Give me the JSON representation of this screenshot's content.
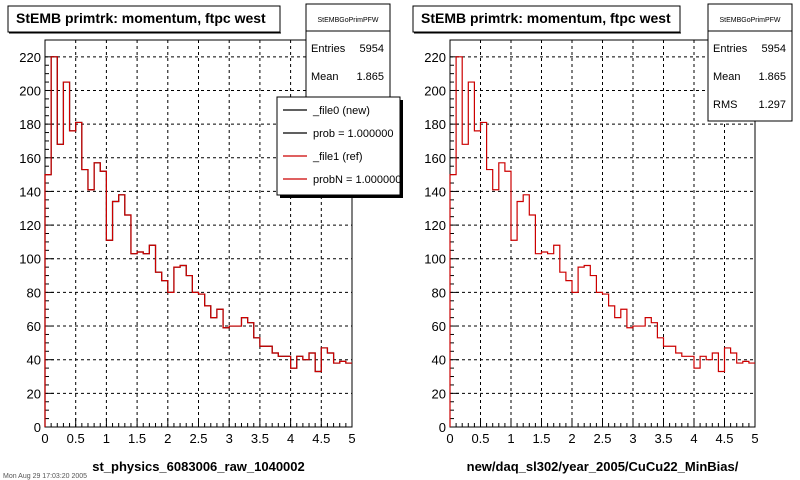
{
  "chart_data": [
    {
      "type": "histogram",
      "title": "StEMB primtrk: momentum, ftpc west",
      "xlabel": "st_physics_6083006_raw_1040002",
      "ylabel": "",
      "xlim": [
        0,
        5
      ],
      "ylim": [
        0,
        230
      ],
      "bin_width": 0.1,
      "grid": true,
      "stats": {
        "name": "StEMBGoPrimPFW",
        "rows": [
          {
            "label": "Entries",
            "value": "5954"
          },
          {
            "label": "Mean",
            "value": "1.865"
          }
        ]
      },
      "legend": {
        "placement": "top-right",
        "entries": [
          {
            "label": "_file0 (new)",
            "color": "#000000"
          },
          {
            "label": "prob = 1.000000",
            "color": "#000000"
          },
          {
            "label": "_file1 (ref)",
            "color": "#cc0000"
          },
          {
            "label": "probN = 1.000000",
            "color": "#cc0000"
          }
        ]
      },
      "series": [
        {
          "name": "_file0 (new)",
          "color": "#000000",
          "values": [
            150,
            220,
            168,
            205,
            176,
            181,
            153,
            141,
            157,
            152,
            111,
            134,
            138,
            126,
            103,
            104,
            103,
            108,
            92,
            87,
            80,
            95,
            96,
            90,
            80,
            79,
            72,
            65,
            70,
            59,
            60,
            60,
            65,
            62,
            53,
            48,
            48,
            44,
            42,
            42,
            35,
            42,
            40,
            44,
            33,
            47,
            44,
            38,
            39,
            38
          ]
        },
        {
          "name": "_file1 (ref)",
          "color": "#cc0000",
          "values": [
            150,
            220,
            168,
            205,
            176,
            181,
            153,
            141,
            157,
            152,
            111,
            134,
            138,
            126,
            103,
            104,
            103,
            108,
            92,
            87,
            80,
            95,
            96,
            90,
            80,
            79,
            72,
            65,
            70,
            59,
            60,
            60,
            65,
            62,
            53,
            48,
            48,
            44,
            42,
            42,
            35,
            42,
            40,
            44,
            33,
            47,
            44,
            38,
            39,
            38
          ]
        }
      ]
    },
    {
      "type": "histogram",
      "title": "StEMB primtrk: momentum, ftpc west",
      "xlabel": "new/daq_sl302/year_2005/CuCu22_MinBias/",
      "ylabel": "",
      "xlim": [
        0,
        5
      ],
      "ylim": [
        0,
        230
      ],
      "bin_width": 0.1,
      "grid": true,
      "stats": {
        "name": "StEMBGoPrimPFW",
        "rows": [
          {
            "label": "Entries",
            "value": "5954"
          },
          {
            "label": "Mean",
            "value": "1.865"
          },
          {
            "label": "RMS",
            "value": "1.297"
          }
        ]
      },
      "legend": null,
      "series": [
        {
          "name": "",
          "color": "#cc0000",
          "values": [
            150,
            220,
            168,
            205,
            176,
            181,
            153,
            141,
            157,
            152,
            111,
            134,
            138,
            126,
            103,
            104,
            103,
            108,
            92,
            87,
            80,
            95,
            96,
            90,
            80,
            79,
            72,
            65,
            70,
            59,
            60,
            60,
            65,
            62,
            53,
            48,
            48,
            44,
            42,
            42,
            35,
            42,
            40,
            44,
            33,
            47,
            44,
            38,
            39,
            38
          ]
        }
      ]
    }
  ],
  "footer_text": "Mon Aug 29 17:03:20 2005"
}
